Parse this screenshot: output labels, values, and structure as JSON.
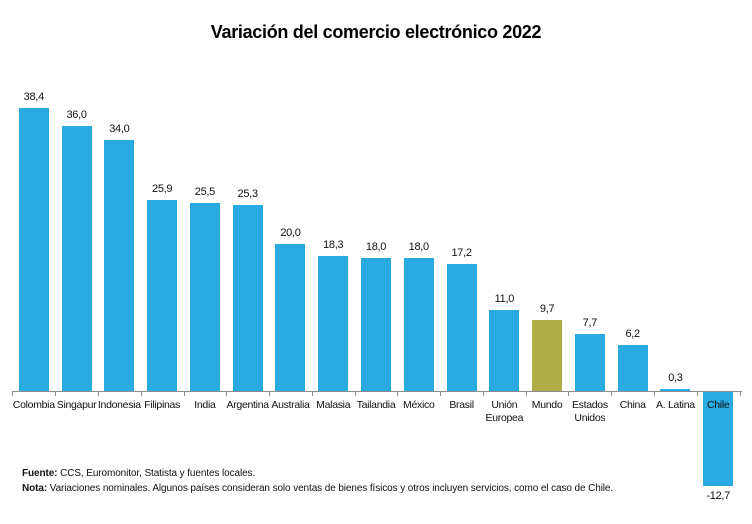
{
  "title": "Variación del comercio electrónico 2022",
  "chart_data": {
    "type": "bar",
    "title": "Variación del comercio electrónico 2022",
    "categories": [
      "Colombia",
      "Singapur",
      "Indonesia",
      "Filipinas",
      "India",
      "Argentina",
      "Australia",
      "Malasia",
      "Tailandia",
      "México",
      "Brasil",
      "Unión Europea",
      "Mundo",
      "Estados Unidos",
      "China",
      "A. Latina",
      "Chile"
    ],
    "values": [
      38.4,
      36.0,
      34.0,
      25.9,
      25.5,
      25.3,
      20.0,
      18.3,
      18.0,
      18.0,
      17.2,
      11.0,
      9.7,
      7.7,
      6.2,
      0.3,
      -12.7
    ],
    "value_labels": [
      "38,4",
      "36,0",
      "34,0",
      "25,9",
      "25,5",
      "25,3",
      "20,0",
      "18,3",
      "18,0",
      "18,0",
      "17,2",
      "11,0",
      "9,7",
      "7,7",
      "6,2",
      "0,3",
      "-12,7"
    ],
    "highlight_index": 12,
    "bar_color": "#29ABE2",
    "highlight_color": "#B2AE47",
    "xlabel": "",
    "ylabel": "",
    "ylim": [
      -15,
      42
    ],
    "grid": false,
    "legend": false
  },
  "footer": {
    "fuente_label": "Fuente:",
    "fuente_text": " CCS, Euromonitor, Statista y fuentes locales.",
    "nota_label": "Nota:",
    "nota_text": " Variaciones nominales. Algunos países consideran solo ventas de bienes físicos y otros incluyen servicios, como el caso de Chile."
  }
}
